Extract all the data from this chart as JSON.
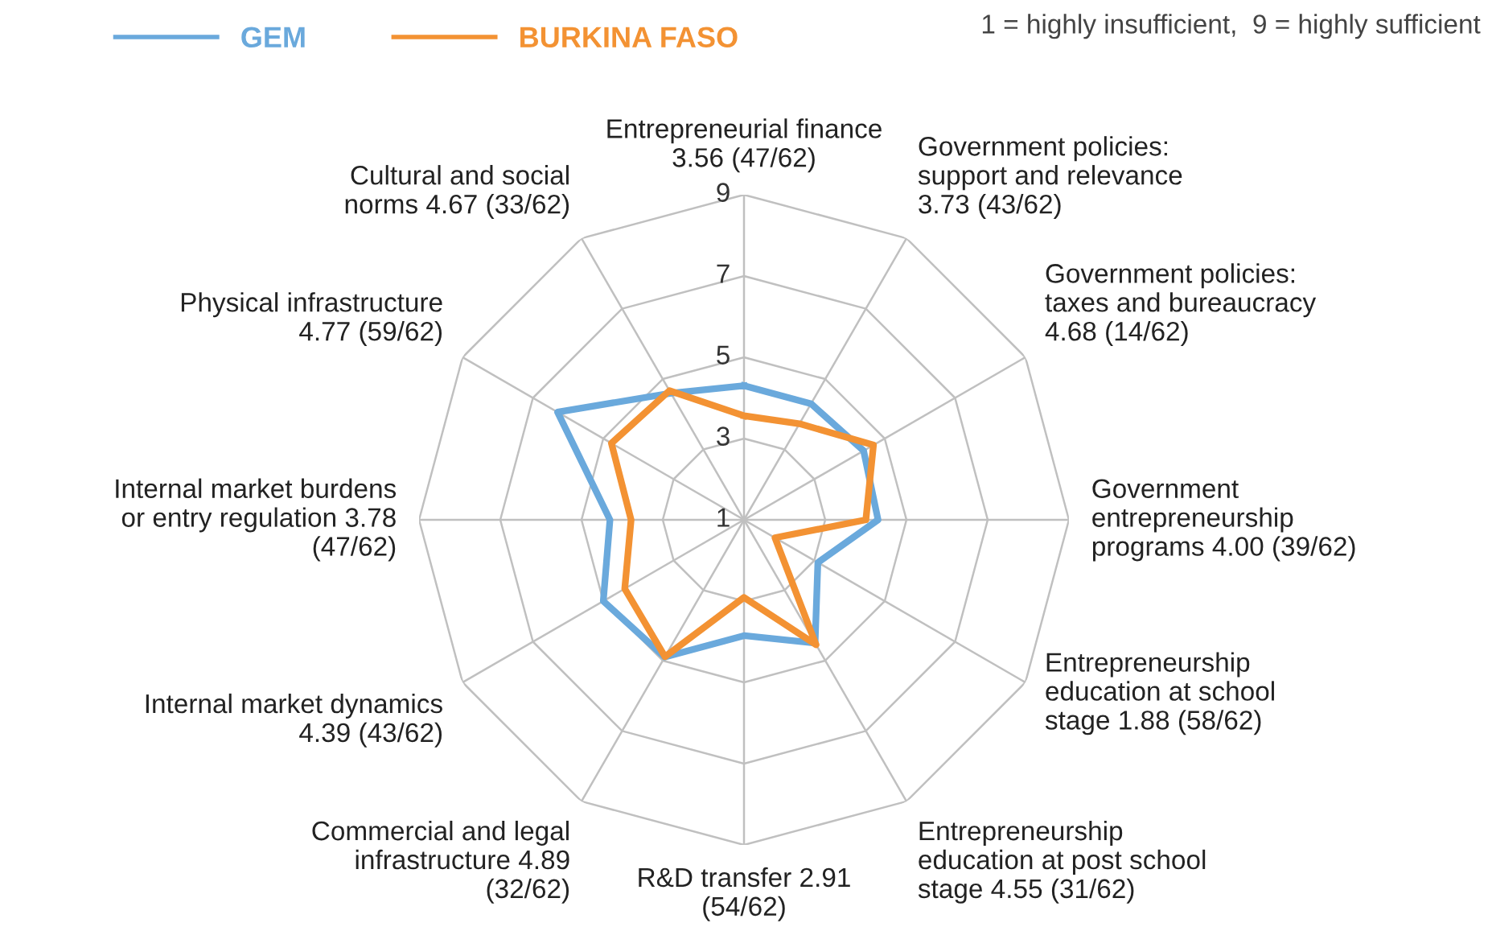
{
  "chart_data": {
    "type": "radar",
    "categories": [
      "Entrepreneurial finance\n3.56 (47/62)",
      "Government policies:\nsupport and relevance\n3.73 (43/62)",
      "Government policies:\ntaxes and bureaucracy\n4.68 (14/62)",
      "Government\nentrepreneurship\nprograms 4.00 (39/62)",
      "Entrepreneurship\neducation at school\nstage 1.88 (58/62)",
      "Entrepreneurship\neducation at post school\nstage 4.55 (31/62)",
      "R&D transfer 2.91\n(54/62)",
      "Commercial and legal\ninfrastructure 4.89\n(32/62)",
      "Internal market dynamics\n4.39 (43/62)",
      "Internal market burdens\nor entry regulation 3.78\n(47/62)",
      "Physical infrastructure\n4.77 (59/62)",
      "Cultural and social\nnorms 4.67 (33/62)"
    ],
    "series": [
      {
        "name": "GEM",
        "color": "#6aa9dc",
        "values": [
          4.3,
          4.3,
          4.4,
          4.3,
          3.1,
          4.5,
          3.85,
          4.9,
          5.0,
          4.3,
          6.3,
          4.6
        ]
      },
      {
        "name": "BURKINA FASO",
        "color": "#f39233",
        "values": [
          3.56,
          3.73,
          4.68,
          4.0,
          1.88,
          4.55,
          2.91,
          4.89,
          4.39,
          3.78,
          4.77,
          4.67
        ]
      }
    ],
    "ylim": [
      1,
      9
    ],
    "yticks": [
      1,
      3,
      5,
      7,
      9
    ],
    "grid": true,
    "legend": "top left",
    "marker": "none",
    "line_style": "solid",
    "annotations": [
      "1 = highly insufficient,  9 = highly sufficient"
    ]
  }
}
